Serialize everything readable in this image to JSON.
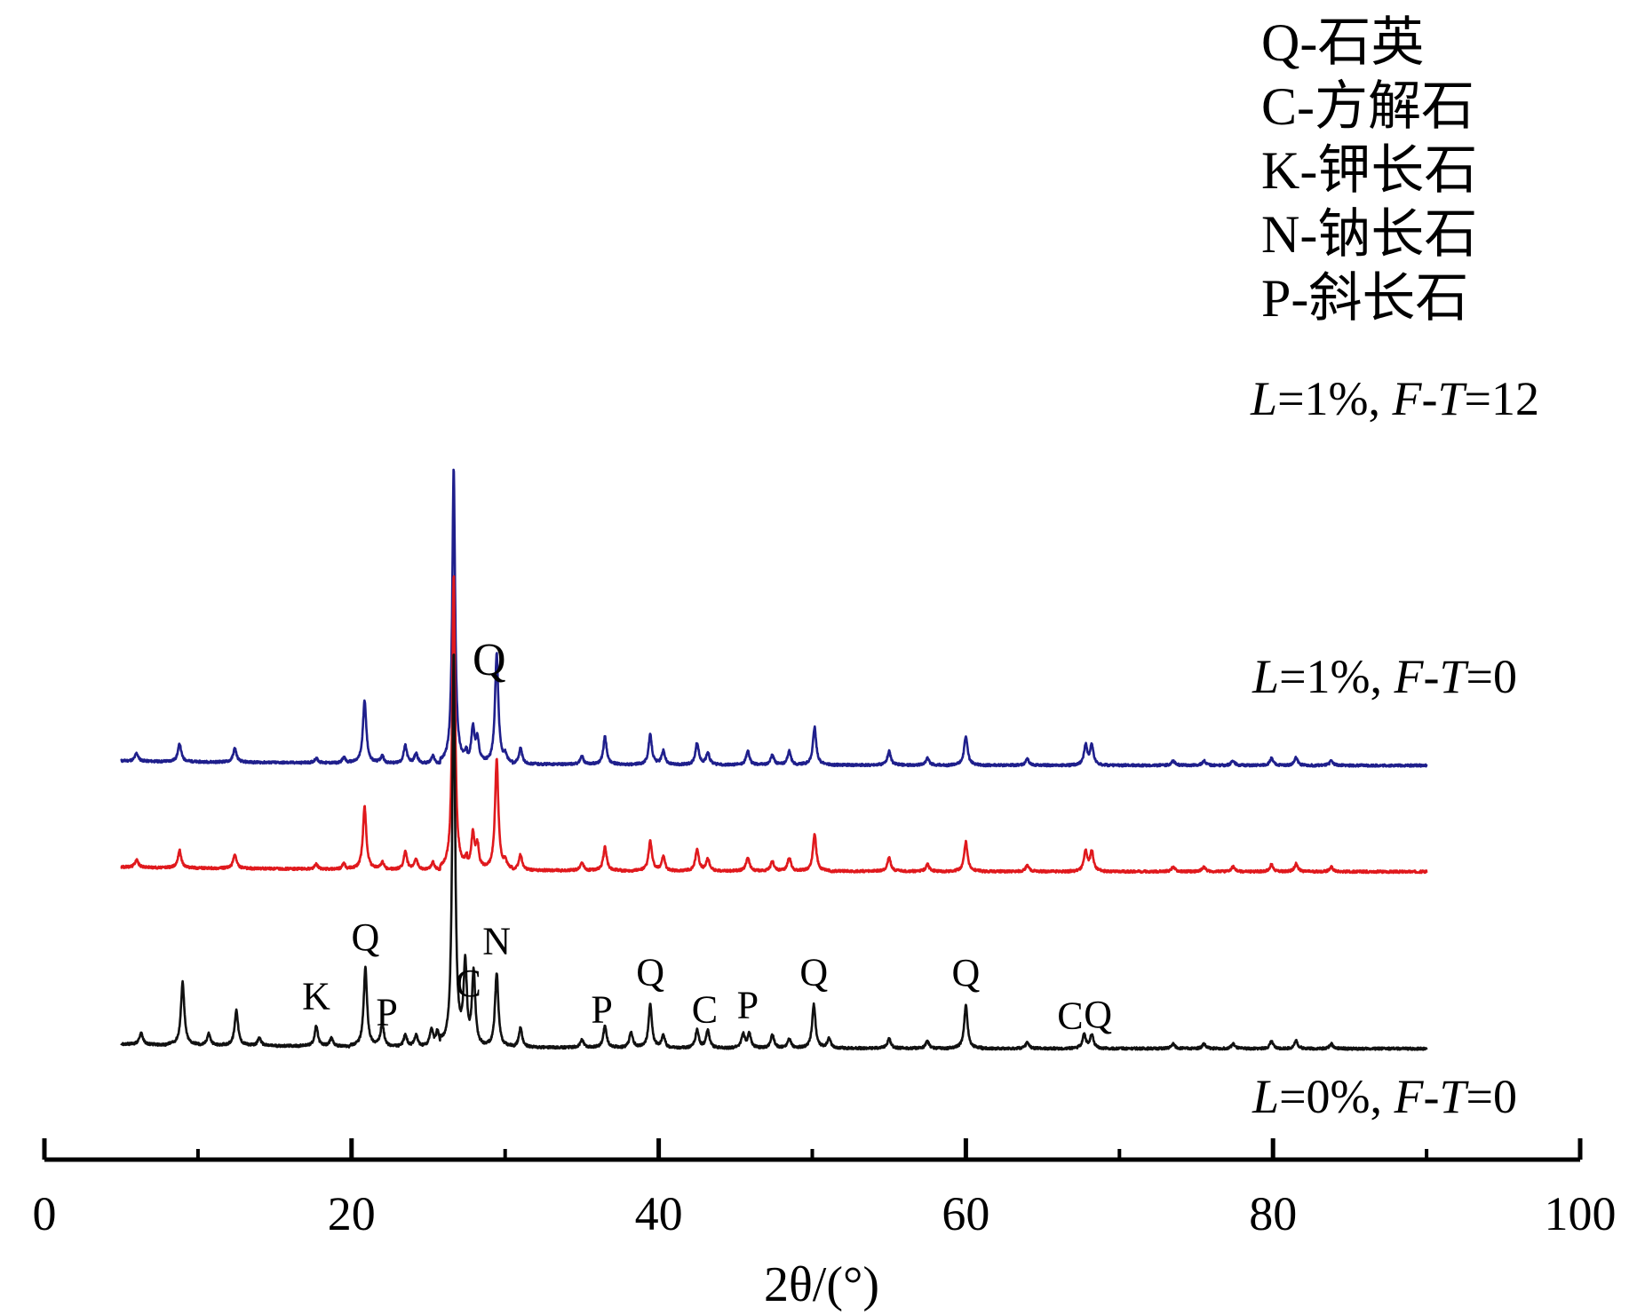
{
  "chart_data": {
    "type": "line",
    "xlabel": "2θ/(°)",
    "xlim": [
      0,
      100
    ],
    "x_ticks": [
      "0",
      "20",
      "40",
      "60",
      "80",
      "100"
    ],
    "x_range_measured": [
      5,
      90
    ],
    "legend": [
      {
        "code": "Q",
        "name": "石英"
      },
      {
        "code": "C",
        "name": "方解石"
      },
      {
        "code": "K",
        "name": "钾长石"
      },
      {
        "code": "N",
        "name": "钠长石"
      },
      {
        "code": "P",
        "name": "斜长石"
      }
    ],
    "series": [
      {
        "name": "L=1%, F-T=12",
        "label_parts": {
          "L": "L",
          "L_val": "=1%, ",
          "F": "F",
          "dash": "-",
          "T": "T",
          "T_val": "=12"
        },
        "color": "#1f1f8c",
        "offset": 0.72,
        "peaks": [
          [
            6.0,
            0.02
          ],
          [
            8.8,
            0.045
          ],
          [
            12.4,
            0.035
          ],
          [
            17.7,
            0.012
          ],
          [
            19.5,
            0.015
          ],
          [
            20.85,
            0.16
          ],
          [
            22.0,
            0.02
          ],
          [
            23.5,
            0.045
          ],
          [
            24.2,
            0.025
          ],
          [
            25.3,
            0.02
          ],
          [
            26.65,
            0.75
          ],
          [
            27.5,
            0.02
          ],
          [
            27.9,
            0.09
          ],
          [
            28.2,
            0.06
          ],
          [
            29.45,
            0.28
          ],
          [
            30.0,
            0.018
          ],
          [
            31.0,
            0.04
          ],
          [
            35.0,
            0.02
          ],
          [
            36.5,
            0.07
          ],
          [
            39.45,
            0.075
          ],
          [
            40.3,
            0.035
          ],
          [
            42.5,
            0.055
          ],
          [
            43.2,
            0.03
          ],
          [
            45.8,
            0.035
          ],
          [
            47.4,
            0.025
          ],
          [
            48.5,
            0.035
          ],
          [
            50.15,
            0.095
          ],
          [
            55.0,
            0.035
          ],
          [
            57.5,
            0.018
          ],
          [
            60.0,
            0.075
          ],
          [
            64.0,
            0.015
          ],
          [
            67.8,
            0.05
          ],
          [
            68.2,
            0.05
          ],
          [
            73.5,
            0.012
          ],
          [
            75.5,
            0.012
          ],
          [
            77.4,
            0.012
          ],
          [
            79.9,
            0.018
          ],
          [
            81.5,
            0.02
          ],
          [
            83.8,
            0.012
          ]
        ]
      },
      {
        "name": "L=1%, F-T=0",
        "label_parts": {
          "L": "L",
          "L_val": "=1%, ",
          "F": "F",
          "dash": "-",
          "T": "T",
          "T_val": "=0"
        },
        "color": "#e0191d",
        "offset": 0.45,
        "peaks": [
          [
            6.0,
            0.02
          ],
          [
            8.8,
            0.045
          ],
          [
            12.4,
            0.035
          ],
          [
            17.7,
            0.012
          ],
          [
            19.5,
            0.015
          ],
          [
            20.85,
            0.16
          ],
          [
            22.0,
            0.02
          ],
          [
            23.5,
            0.045
          ],
          [
            24.2,
            0.025
          ],
          [
            25.3,
            0.02
          ],
          [
            26.65,
            0.75
          ],
          [
            27.5,
            0.02
          ],
          [
            27.9,
            0.09
          ],
          [
            28.2,
            0.06
          ],
          [
            29.45,
            0.28
          ],
          [
            30.0,
            0.018
          ],
          [
            31.0,
            0.04
          ],
          [
            35.0,
            0.02
          ],
          [
            36.5,
            0.06
          ],
          [
            39.45,
            0.075
          ],
          [
            40.3,
            0.035
          ],
          [
            42.5,
            0.055
          ],
          [
            43.2,
            0.03
          ],
          [
            45.8,
            0.035
          ],
          [
            47.4,
            0.025
          ],
          [
            48.5,
            0.035
          ],
          [
            50.15,
            0.095
          ],
          [
            55.0,
            0.035
          ],
          [
            57.5,
            0.018
          ],
          [
            60.0,
            0.075
          ],
          [
            64.0,
            0.015
          ],
          [
            67.8,
            0.05
          ],
          [
            68.2,
            0.05
          ],
          [
            73.5,
            0.012
          ],
          [
            75.5,
            0.012
          ],
          [
            77.4,
            0.012
          ],
          [
            79.9,
            0.018
          ],
          [
            81.5,
            0.02
          ],
          [
            83.8,
            0.012
          ]
        ]
      },
      {
        "name": "L=0%, F-T=0",
        "label_parts": {
          "L": "L",
          "L_val": "=0%, ",
          "F": "F",
          "dash": "-",
          "T": "T",
          "T_val": "=0"
        },
        "color": "#111111",
        "offset": 0.0,
        "peaks": [
          [
            6.3,
            0.03
          ],
          [
            9.0,
            0.16
          ],
          [
            10.7,
            0.03
          ],
          [
            12.5,
            0.09
          ],
          [
            14.0,
            0.02
          ],
          [
            17.7,
            0.05
          ],
          [
            18.7,
            0.02
          ],
          [
            20.9,
            0.2
          ],
          [
            22.0,
            0.06
          ],
          [
            23.5,
            0.03
          ],
          [
            24.2,
            0.03
          ],
          [
            25.2,
            0.045
          ],
          [
            25.6,
            0.04
          ],
          [
            26.65,
            1.0
          ],
          [
            27.4,
            0.2
          ],
          [
            27.95,
            0.19
          ],
          [
            29.45,
            0.19
          ],
          [
            31.0,
            0.05
          ],
          [
            35.0,
            0.02
          ],
          [
            36.5,
            0.055
          ],
          [
            38.2,
            0.04
          ],
          [
            39.45,
            0.11
          ],
          [
            40.3,
            0.03
          ],
          [
            42.5,
            0.045
          ],
          [
            43.2,
            0.045
          ],
          [
            45.5,
            0.035
          ],
          [
            45.9,
            0.035
          ],
          [
            47.4,
            0.035
          ],
          [
            48.5,
            0.025
          ],
          [
            50.1,
            0.11
          ],
          [
            51.1,
            0.025
          ],
          [
            55.0,
            0.025
          ],
          [
            57.5,
            0.018
          ],
          [
            60.0,
            0.11
          ],
          [
            64.0,
            0.015
          ],
          [
            67.7,
            0.035
          ],
          [
            68.2,
            0.035
          ],
          [
            73.5,
            0.012
          ],
          [
            75.5,
            0.012
          ],
          [
            77.4,
            0.012
          ],
          [
            79.9,
            0.018
          ],
          [
            81.5,
            0.02
          ],
          [
            83.8,
            0.012
          ]
        ],
        "annotations": [
          {
            "text": "Q",
            "x": 26.65
          },
          {
            "text": "Q",
            "x": 20.9
          },
          {
            "text": "K",
            "x": 17.7
          },
          {
            "text": "P",
            "x": 22.3
          },
          {
            "text": "C",
            "x": 27.6
          },
          {
            "text": "N",
            "x": 29.45
          },
          {
            "text": "P",
            "x": 36.3
          },
          {
            "text": "Q",
            "x": 39.45
          },
          {
            "text": "C",
            "x": 43.0
          },
          {
            "text": "P",
            "x": 45.8
          },
          {
            "text": "Q",
            "x": 50.1
          },
          {
            "text": "Q",
            "x": 60.0
          },
          {
            "text": "C",
            "x": 66.8
          },
          {
            "text": "Q",
            "x": 68.6
          }
        ]
      }
    ],
    "grid": false
  }
}
